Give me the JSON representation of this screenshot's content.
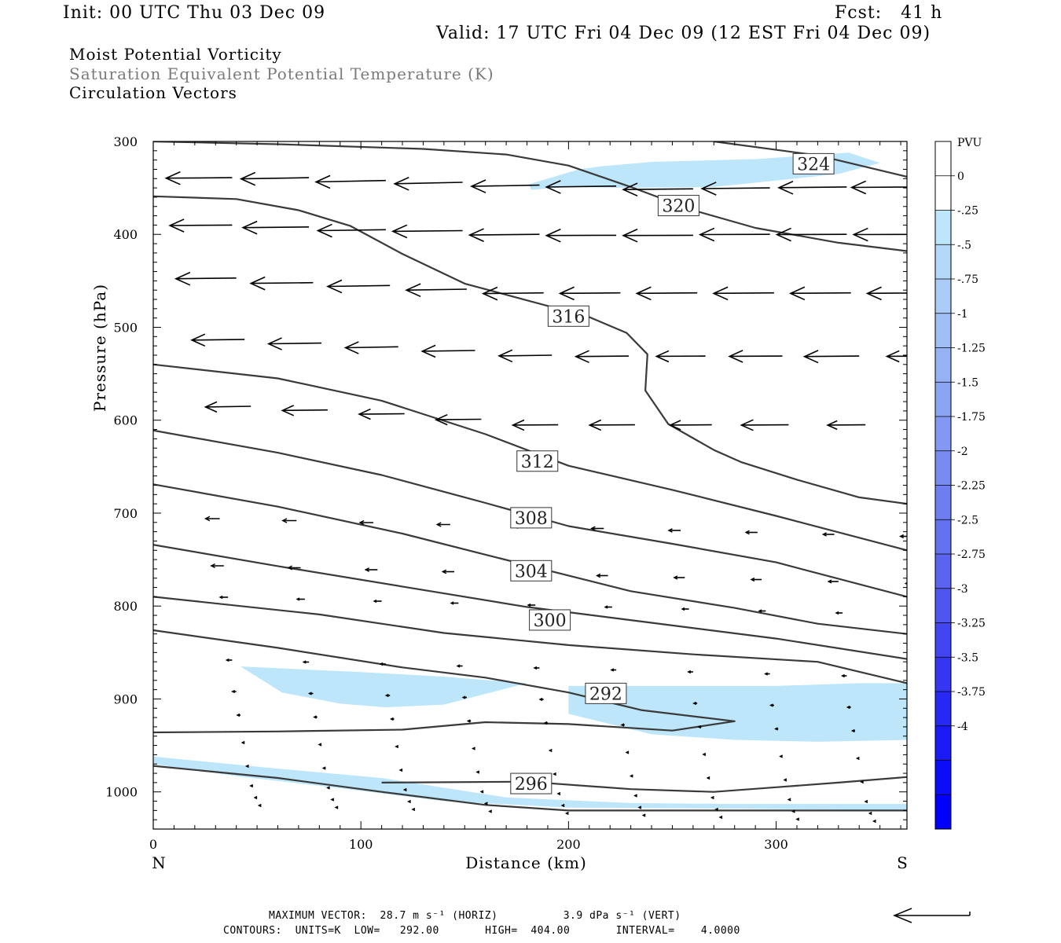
{
  "header": {
    "init": "Init: 00 UTC Thu 03 Dec 09",
    "fcst": "Fcst:   41 h",
    "valid": "Valid: 17 UTC Fri 04 Dec 09 (12 EST Fri 04 Dec 09)",
    "fields": [
      "Moist Potential Vorticity",
      "Saturation Equivalent Potential Temperature (K)",
      "Circulation Vectors"
    ]
  },
  "colors": {
    "shade_light": "#bde6fa",
    "contour": "#3a3a3a",
    "colorbar": [
      "#ffffff",
      "#ffffff",
      "#bde6fa",
      "#b4d8f8",
      "#aaccf6",
      "#a0bff5",
      "#96b2f4",
      "#8ca5f3",
      "#8298f2",
      "#788bf1",
      "#6e7ef0",
      "#6471ef",
      "#5a64ee",
      "#4f55ef",
      "#4345f0",
      "#3636f2",
      "#2828f4",
      "#1a1af6",
      "#0c0cf9",
      "#0000fc"
    ]
  },
  "chart_data": {
    "type": "cross-section",
    "xlabel": "Distance (km)",
    "ylabel": "Pressure (hPa)",
    "xlim": [
      0,
      363
    ],
    "ylim": [
      1040,
      300
    ],
    "x_ticks": [
      "0",
      "100",
      "200",
      "300"
    ],
    "y_ticks": [
      "300",
      "400",
      "500",
      "600",
      "700",
      "800",
      "900",
      "1000"
    ],
    "endpoints": {
      "left": "N",
      "right": "S"
    },
    "colorbar": {
      "unit": "PVU",
      "labels": [
        "0",
        "-.25",
        "-.5",
        "-.75",
        "-1",
        "-1.25",
        "-1.5",
        "-1.75",
        "-2",
        "-2.25",
        "-2.5",
        "-2.75",
        "-3",
        "-3.25",
        "-3.5",
        "-3.75",
        "-4"
      ]
    },
    "contour_labels": [
      {
        "text": "324",
        "x": 318,
        "p": 324
      },
      {
        "text": "320",
        "x": 253,
        "p": 369
      },
      {
        "text": "316",
        "x": 200,
        "p": 488
      },
      {
        "text": "312",
        "x": 185,
        "p": 644
      },
      {
        "text": "308",
        "x": 182,
        "p": 705
      },
      {
        "text": "304",
        "x": 182,
        "p": 762
      },
      {
        "text": "300",
        "x": 191,
        "p": 815
      },
      {
        "text": "292",
        "x": 218,
        "p": 894
      },
      {
        "text": "296",
        "x": 182,
        "p": 991
      }
    ],
    "contours": [
      {
        "level": 324,
        "points": [
          [
            270,
            300
          ],
          [
            320,
            315
          ],
          [
            363,
            338
          ]
        ]
      },
      {
        "level": 320,
        "points": [
          [
            0,
            300
          ],
          [
            60,
            303
          ],
          [
            130,
            308
          ],
          [
            170,
            314
          ],
          [
            200,
            326
          ],
          [
            230,
            349
          ],
          [
            260,
            374
          ],
          [
            290,
            393
          ],
          [
            330,
            409
          ],
          [
            363,
            418
          ]
        ]
      },
      {
        "level": 316,
        "points": [
          [
            0,
            359
          ],
          [
            40,
            362
          ],
          [
            70,
            374
          ],
          [
            95,
            391
          ],
          [
            120,
            421
          ],
          [
            150,
            453
          ],
          [
            180,
            471
          ],
          [
            210,
            489
          ],
          [
            228,
            506
          ],
          [
            238,
            529
          ],
          [
            237,
            568
          ],
          [
            248,
            604
          ],
          [
            270,
            632
          ],
          [
            283,
            645
          ],
          [
            310,
            664
          ],
          [
            340,
            683
          ],
          [
            363,
            690
          ]
        ]
      },
      {
        "level": 312,
        "points": [
          [
            0,
            540
          ],
          [
            60,
            555
          ],
          [
            110,
            579
          ],
          [
            160,
            615
          ],
          [
            200,
            649
          ],
          [
            250,
            675
          ],
          [
            300,
            703
          ],
          [
            363,
            740
          ]
        ]
      },
      {
        "level": 308,
        "points": [
          [
            0,
            611
          ],
          [
            60,
            635
          ],
          [
            110,
            659
          ],
          [
            160,
            689
          ],
          [
            200,
            714
          ],
          [
            250,
            733
          ],
          [
            300,
            753
          ],
          [
            363,
            790
          ]
        ]
      },
      {
        "level": 304,
        "points": [
          [
            0,
            669
          ],
          [
            60,
            693
          ],
          [
            120,
            722
          ],
          [
            180,
            756
          ],
          [
            230,
            784
          ],
          [
            280,
            802
          ],
          [
            320,
            819
          ],
          [
            363,
            830
          ]
        ]
      },
      {
        "level": 300,
        "points": [
          [
            0,
            734
          ],
          [
            60,
            757
          ],
          [
            120,
            779
          ],
          [
            180,
            801
          ],
          [
            240,
            818
          ],
          [
            300,
            835
          ],
          [
            363,
            857
          ]
        ]
      },
      {
        "level": 296,
        "points": [
          [
            0,
            790
          ],
          [
            80,
            809
          ],
          [
            140,
            829
          ],
          [
            200,
            842
          ],
          [
            260,
            852
          ],
          [
            320,
            860
          ],
          [
            363,
            883
          ]
        ]
      },
      {
        "level": 292,
        "points": [
          [
            0,
            826
          ],
          [
            60,
            845
          ],
          [
            120,
            866
          ],
          [
            160,
            877
          ],
          [
            200,
            893
          ],
          [
            235,
            912
          ],
          [
            280,
            924
          ],
          [
            250,
            934
          ],
          [
            200,
            927
          ],
          [
            160,
            925
          ],
          [
            120,
            933
          ],
          [
            60,
            935
          ],
          [
            0,
            936
          ]
        ]
      },
      {
        "level": 296,
        "points": [
          [
            110,
            990
          ],
          [
            180,
            989
          ],
          [
            230,
            997
          ],
          [
            270,
            1000
          ],
          [
            300,
            995
          ],
          [
            330,
            990
          ],
          [
            363,
            984
          ]
        ]
      },
      {
        "level": 300,
        "points": [
          [
            0,
            972
          ],
          [
            60,
            985
          ],
          [
            110,
            1000
          ],
          [
            160,
            1014
          ],
          [
            200,
            1020
          ],
          [
            363,
            1020
          ]
        ]
      }
    ],
    "shaded_regions": [
      {
        "pvu": -0.25,
        "points": [
          [
            181,
            346
          ],
          [
            205,
            330
          ],
          [
            215,
            327
          ],
          [
            240,
            322
          ],
          [
            290,
            319
          ],
          [
            335,
            312
          ],
          [
            350,
            323
          ],
          [
            330,
            335
          ],
          [
            300,
            342
          ],
          [
            270,
            349
          ],
          [
            230,
            350
          ],
          [
            200,
            349
          ],
          [
            182,
            352
          ]
        ]
      },
      {
        "pvu": -0.25,
        "points": [
          [
            42,
            865
          ],
          [
            100,
            871
          ],
          [
            140,
            876
          ],
          [
            180,
            883
          ],
          [
            140,
            906
          ],
          [
            112,
            909
          ],
          [
            90,
            905
          ],
          [
            62,
            893
          ]
        ]
      },
      {
        "pvu": -0.25,
        "points": [
          [
            200,
            886
          ],
          [
            240,
            886
          ],
          [
            300,
            886
          ],
          [
            340,
            883
          ],
          [
            363,
            883
          ],
          [
            363,
            944
          ],
          [
            320,
            946
          ],
          [
            280,
            944
          ],
          [
            240,
            938
          ],
          [
            200,
            916
          ]
        ]
      },
      {
        "pvu": -0.25,
        "points": [
          [
            0,
            962
          ],
          [
            60,
            975
          ],
          [
            110,
            985
          ],
          [
            170,
            1006
          ],
          [
            230,
            1012
          ],
          [
            280,
            1013
          ],
          [
            363,
            1013
          ],
          [
            363,
            1020
          ],
          [
            280,
            1018
          ],
          [
            200,
            1017
          ],
          [
            140,
            1010
          ],
          [
            90,
            996
          ],
          [
            40,
            983
          ],
          [
            0,
            970
          ]
        ]
      }
    ],
    "vectors": {
      "note": "circulation vectors, [x_km, p_hPa, u, w]",
      "rows": [
        [
          3,
          339,
          -35,
          0.2
        ],
        [
          40,
          339,
          -36,
          0.5
        ],
        [
          77,
          342,
          -37,
          0.6
        ],
        [
          114,
          344,
          -36,
          0.6
        ],
        [
          151,
          347,
          -36,
          0.5
        ],
        [
          188,
          348,
          -37,
          0.4
        ],
        [
          225,
          351,
          -37,
          0.3
        ],
        [
          262,
          350,
          -36,
          0.3
        ],
        [
          299,
          349,
          -36,
          0.3
        ],
        [
          335,
          349,
          -37,
          0.2
        ],
        [
          3,
          390,
          -33,
          0.2
        ],
        [
          40,
          392,
          -35,
          0.3
        ],
        [
          77,
          395,
          -36,
          0.4
        ],
        [
          114,
          396,
          -37,
          0.3
        ],
        [
          151,
          400,
          -37,
          0.3
        ],
        [
          188,
          401,
          -37,
          0.1
        ],
        [
          225,
          401,
          -37,
          0.1
        ],
        [
          262,
          400,
          -37,
          0.1
        ],
        [
          299,
          400,
          -37,
          0.1
        ],
        [
          336,
          400,
          -37,
          0.1
        ],
        [
          5,
          447,
          -32,
          0.3
        ],
        [
          42,
          452,
          -33,
          0.3
        ],
        [
          79,
          455,
          -33,
          0.4
        ],
        [
          116,
          459,
          -32,
          0.4
        ],
        [
          153,
          463,
          -32,
          0.3
        ],
        [
          190,
          463,
          -32,
          0.2
        ],
        [
          227,
          463,
          -32,
          0.2
        ],
        [
          264,
          463,
          -32,
          0.2
        ],
        [
          301,
          463,
          -32,
          0.2
        ],
        [
          338,
          463,
          -32,
          0.2
        ],
        [
          9,
          513,
          -28,
          0.3
        ],
        [
          46,
          517,
          -28,
          0.3
        ],
        [
          83,
          521,
          -28,
          0.4
        ],
        [
          120,
          525,
          -28,
          0.3
        ],
        [
          157,
          530,
          -28,
          0.3
        ],
        [
          194,
          531,
          -28,
          0.2
        ],
        [
          231,
          531,
          -26,
          0.1
        ],
        [
          268,
          531,
          -28,
          0.1
        ],
        [
          305,
          531,
          -29,
          0.2
        ],
        [
          342,
          531,
          -26,
          0.1
        ],
        [
          12,
          585,
          -24,
          0.3
        ],
        [
          49,
          589,
          -24,
          0.2
        ],
        [
          86,
          593,
          -24,
          0.2
        ],
        [
          123,
          599,
          -24,
          0.2
        ],
        [
          160,
          605,
          -24,
          0.1
        ],
        [
          197,
          605,
          -24,
          0.1
        ],
        [
          234,
          605,
          -22,
          0.1
        ],
        [
          271,
          605,
          -25,
          0.1
        ],
        [
          308,
          605,
          -20,
          0.1
        ],
        [
          345,
          605,
          -17,
          0.1
        ]
      ]
    }
  },
  "footer": {
    "max_vector": "MAXIMUM VECTOR:  28.7 m s⁻¹ (HORIZ)          3.9 dPa s⁻¹ (VERT)",
    "contours": "CONTOURS:  UNITS=K  LOW=   292.00       HIGH=  404.00       INTERVAL=    4.0000"
  }
}
